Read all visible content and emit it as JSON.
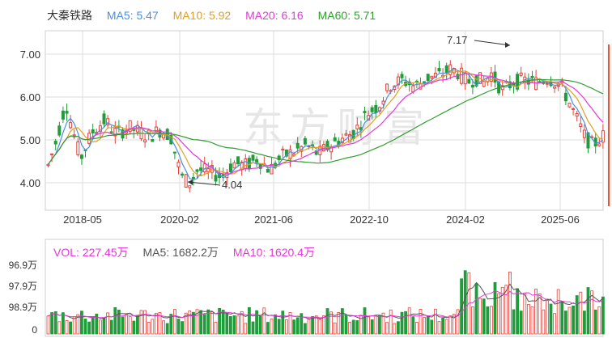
{
  "colors": {
    "up": "#e8413a",
    "down": "#1f9d3a",
    "ma5": "#4a8fe0",
    "ma10": "#e0a021",
    "ma20": "#e339d6",
    "ma60": "#2f9e2f",
    "grid": "#dddddd",
    "watermark": "#e4e4e4",
    "text": "#333333"
  },
  "chart_data": [
    {
      "type": "candlestick",
      "title": "大秦铁路",
      "legend": [
        {
          "name": "MA5",
          "value": "5.47",
          "color": "#4a8fe0"
        },
        {
          "name": "MA10",
          "value": "5.92",
          "color": "#e0a021"
        },
        {
          "name": "MA20",
          "value": "6.16",
          "color": "#e339d6"
        },
        {
          "name": "MA60",
          "value": "5.71",
          "color": "#2f9e2f"
        }
      ],
      "y_ticks": [
        "7.00",
        "6.00",
        "5.00",
        "4.00"
      ],
      "ylim": [
        3.55,
        7.55
      ],
      "x_ticks": [
        "2018-05",
        "2020-02",
        "2021-06",
        "2022-10",
        "2024-02",
        "2025-06"
      ],
      "annotations": [
        {
          "label": "7.17",
          "value": 7.17,
          "date": "2024-10"
        },
        {
          "label": "4.04",
          "value": 4.04,
          "date": "2020-04"
        }
      ],
      "watermark": "东方财富"
    },
    {
      "type": "bar",
      "legend": [
        {
          "name": "VOL",
          "value": "227.45万",
          "color": "#e339d6"
        },
        {
          "name": "MA5",
          "value": "1682.2万",
          "color": "#555555"
        },
        {
          "name": "MA10",
          "value": "1620.4万",
          "color": "#e339d6"
        }
      ],
      "y_tick_labels": [
        "96.9万",
        "97.9万",
        "98.9万",
        "0"
      ]
    }
  ]
}
